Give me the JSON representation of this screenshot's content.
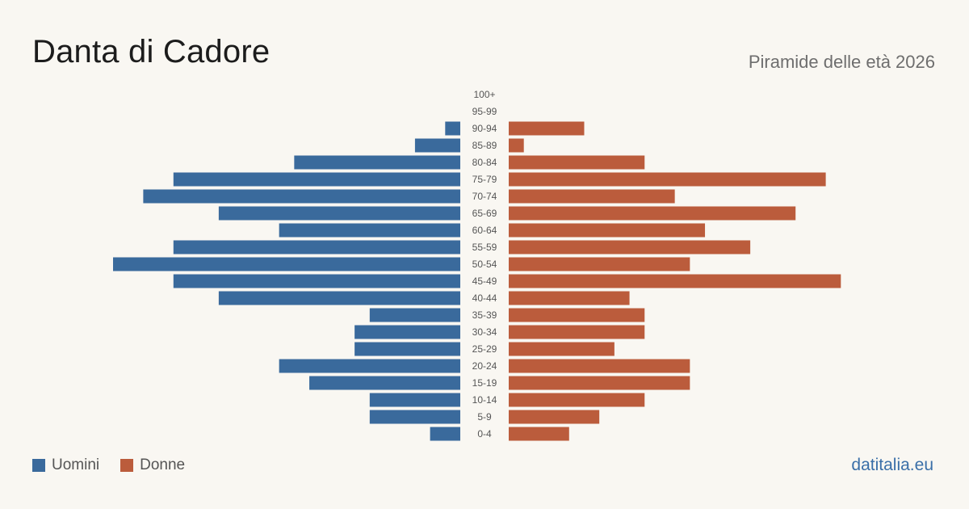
{
  "header": {
    "title": "Danta di Cadore",
    "subtitle": "Piramide delle età 2026"
  },
  "legend": {
    "men_label": "Uomini",
    "women_label": "Donne"
  },
  "footer": {
    "source": "datitalia.eu"
  },
  "colors": {
    "men": "#3a6a9c",
    "women": "#bb5c3c",
    "background": "#f9f7f2",
    "age_label": "#555555"
  },
  "chart_data": {
    "type": "bar",
    "orientation": "horizontal-pyramid",
    "categories": [
      "100+",
      "95-99",
      "90-94",
      "85-89",
      "80-84",
      "75-79",
      "70-74",
      "65-69",
      "60-64",
      "55-59",
      "50-54",
      "45-49",
      "40-44",
      "35-39",
      "30-34",
      "25-29",
      "20-24",
      "15-19",
      "10-14",
      "5-9",
      "0-4"
    ],
    "series": [
      {
        "name": "Uomini",
        "values": [
          0,
          0,
          1,
          3,
          11,
          19,
          21,
          16,
          12,
          19,
          23,
          19,
          16,
          6,
          7,
          7,
          12,
          10,
          6,
          6,
          2
        ]
      },
      {
        "name": "Donne",
        "values": [
          0,
          0,
          5,
          1,
          9,
          21,
          11,
          19,
          13,
          16,
          12,
          22,
          8,
          9,
          9,
          7,
          12,
          12,
          9,
          6,
          4
        ]
      }
    ],
    "xlim": [
      0,
      23
    ],
    "grid": false,
    "legend_position": "bottom-left"
  }
}
